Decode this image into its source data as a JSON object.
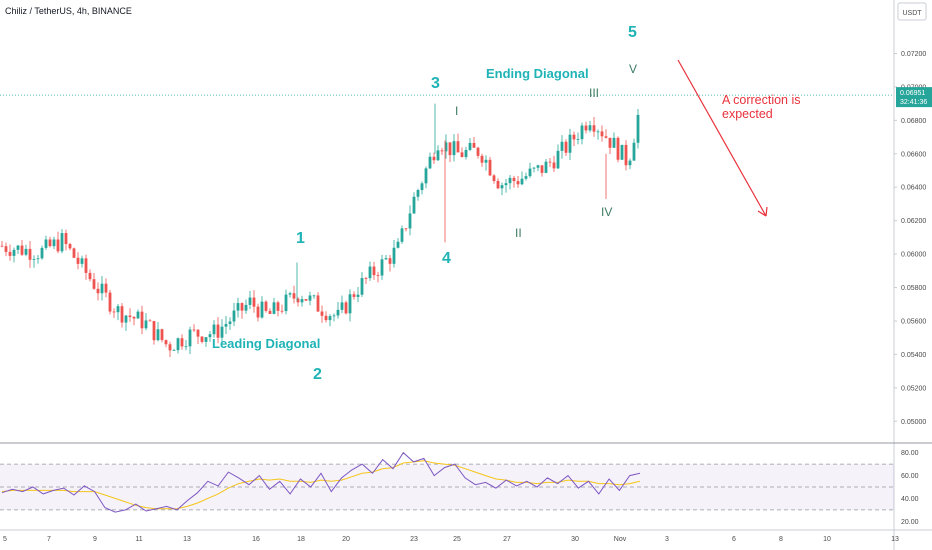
{
  "header": {
    "title": "Chiliz / TetherUS, 4h, BINANCE",
    "currency": "USDT"
  },
  "price_badge": {
    "price": "0.06951",
    "countdown": "32:41:36"
  },
  "colors": {
    "up": "#26a69a",
    "down": "#ef5350",
    "teal": "#1fb3b6",
    "rsi_line": "#7e57c2",
    "rsi_ma": "#f5c518",
    "arrow": "#e8323c"
  },
  "chart_data": {
    "type": "candlestick",
    "price_axis": {
      "ticks": [
        "0.07200",
        "0.07000",
        "0.06800",
        "0.06600",
        "0.06400",
        "0.06200",
        "0.06000",
        "0.05800",
        "0.05600",
        "0.05400",
        "0.05200",
        "0.05000"
      ],
      "ylim": [
        0.0487,
        0.0752
      ]
    },
    "date_axis": {
      "ticks": [
        "5",
        "7",
        "9",
        "11",
        "13",
        "16",
        "18",
        "20",
        "23",
        "25",
        "27",
        "30",
        "Nov",
        "3",
        "6",
        "8",
        "10",
        "13"
      ]
    },
    "anchors": [
      {
        "label": "5",
        "price": 0.0605
      },
      {
        "label": "7",
        "price": 0.0601
      },
      {
        "label": "8",
        "price": 0.0608
      },
      {
        "label": "9",
        "price": 0.058
      },
      {
        "label": "10",
        "price": 0.0566
      },
      {
        "label": "11",
        "price": 0.0559
      },
      {
        "label": "12",
        "price": 0.0545
      },
      {
        "label": "13",
        "price": 0.0552
      },
      {
        "label": "14",
        "price": 0.0553
      },
      {
        "label": "15",
        "price": 0.0571
      },
      {
        "label": "16",
        "price": 0.0563
      },
      {
        "label": "17",
        "price": 0.0577
      },
      {
        "label": "18",
        "price": 0.057
      },
      {
        "label": "19",
        "price": 0.0562
      },
      {
        "label": "20",
        "price": 0.0578
      },
      {
        "label": "21",
        "price": 0.059
      },
      {
        "label": "22",
        "price": 0.0603
      },
      {
        "label": "23",
        "price": 0.063
      },
      {
        "label": "24",
        "price": 0.0668
      },
      {
        "label": "24.5",
        "price": 0.066
      },
      {
        "label": "25",
        "price": 0.0662
      },
      {
        "label": "26",
        "price": 0.0642
      },
      {
        "label": "27",
        "price": 0.0645
      },
      {
        "label": "28",
        "price": 0.0652
      },
      {
        "label": "29",
        "price": 0.0665
      },
      {
        "label": "30",
        "price": 0.0682
      },
      {
        "label": "31",
        "price": 0.0668
      },
      {
        "label": "Nov",
        "price": 0.0655
      },
      {
        "label": "2",
        "price": 0.0688
      }
    ],
    "last_price": 0.06951,
    "rsi": {
      "ticks": [
        "80.00",
        "60.00",
        "40.00",
        "20.00"
      ],
      "ylim": [
        15,
        85
      ],
      "levels": [
        70,
        50,
        30
      ],
      "values": [
        45,
        48,
        46,
        50,
        44,
        47,
        49,
        43,
        51,
        46,
        32,
        28,
        30,
        35,
        29,
        31,
        33,
        30,
        38,
        45,
        55,
        51,
        63,
        58,
        52,
        60,
        48,
        55,
        44,
        57,
        50,
        62,
        46,
        58,
        65,
        70,
        62,
        74,
        66,
        80,
        72,
        75,
        60,
        67,
        70,
        58,
        52,
        54,
        49,
        56,
        51,
        55,
        50,
        58,
        53,
        60,
        49,
        55,
        44,
        57,
        47,
        60,
        62
      ],
      "ma": [
        46,
        47,
        47,
        47,
        47,
        47,
        47,
        46,
        46,
        46,
        43,
        40,
        37,
        34,
        32,
        31,
        31,
        31,
        33,
        36,
        40,
        44,
        49,
        53,
        55,
        57,
        56,
        57,
        55,
        55,
        54,
        56,
        55,
        56,
        59,
        62,
        63,
        66,
        67,
        71,
        72,
        73,
        71,
        70,
        69,
        66,
        63,
        60,
        57,
        56,
        54,
        54,
        53,
        54,
        54,
        56,
        55,
        55,
        53,
        53,
        52,
        53,
        55
      ]
    },
    "annotations": {
      "waves_main": [
        "1",
        "2",
        "3",
        "4",
        "5"
      ],
      "waves_sub": [
        "I",
        "II",
        "III",
        "IV",
        "V"
      ],
      "leading": "Leading Diagonal",
      "ending": "Ending Diagonal",
      "correction_line1": "A correction is",
      "correction_line2": "expected"
    }
  }
}
